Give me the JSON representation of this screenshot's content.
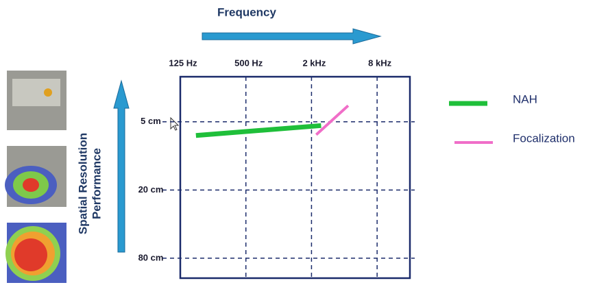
{
  "chart_data": {
    "type": "line",
    "title": "Frequency",
    "ylabel": [
      "Spatial Resolution",
      "Performance"
    ],
    "xscale": "log",
    "yscale": "log",
    "y_inverted": true,
    "grid": true,
    "xlim": [
      125,
      16000
    ],
    "xticks": [
      {
        "value": 125,
        "label": "125 Hz"
      },
      {
        "value": 500,
        "label": "500 Hz"
      },
      {
        "value": 2000,
        "label": "2 kHz"
      },
      {
        "value": 8000,
        "label": "8 kHz"
      }
    ],
    "ylim": [
      2,
      120
    ],
    "yticks": [
      {
        "value": 5,
        "label": "5 cm"
      },
      {
        "value": 20,
        "label": "20 cm"
      },
      {
        "value": 80,
        "label": "80 cm"
      }
    ],
    "series": [
      {
        "name": "NAH",
        "color": "#1fbf3a",
        "x": [
          174,
          2450
        ],
        "values": [
          6.6,
          5.4
        ]
      },
      {
        "name": "Focalization",
        "color": "#f06ec8",
        "x": [
          2210,
          4340
        ],
        "values": [
          6.5,
          3.6
        ]
      }
    ]
  }
}
